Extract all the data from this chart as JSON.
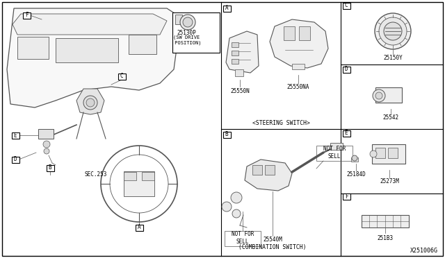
{
  "bg_color": "#ffffff",
  "border_color": "#000000",
  "line_color": "#555555",
  "text_color": "#000000",
  "fig_width": 6.4,
  "fig_height": 3.72,
  "diagram_code": "X251006G",
  "labels": {
    "A_section": "<STEERING SWITCH>",
    "B_section": "(COMBINATION SWITCH)",
    "part_A1": "25550N",
    "part_A2": "25550NA",
    "part_B": "25540M",
    "part_B_nfs1": "NOT FOR\nSELL",
    "part_B_nfs2": "NOT FOR\nSELL",
    "part_C": "25150Y",
    "part_D": "25542",
    "part_E1": "25184D",
    "part_E2": "25273M",
    "part_F_part": "251B3",
    "part_F2": "25130P",
    "sw_drive": "(SW DRIVE\n POSITION)",
    "sec253": "SEC.253"
  }
}
